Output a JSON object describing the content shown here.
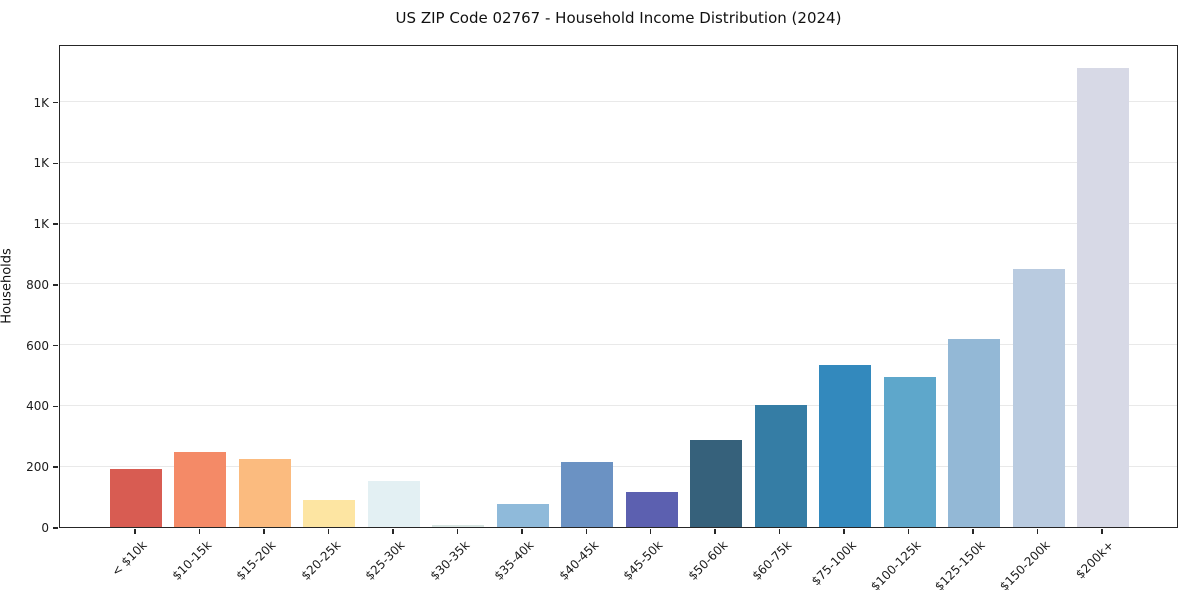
{
  "chart_data": {
    "type": "bar",
    "title": "US ZIP Code 02767 - Household Income Distribution (2024)",
    "xlabel": "",
    "ylabel": "Households",
    "categories": [
      "< $10k",
      "$10-15k",
      "$15-20k",
      "$20-25k",
      "$25-30k",
      "$30-35k",
      "$35-40k",
      "$40-45k",
      "$45-50k",
      "$50-60k",
      "$60-75k",
      "$75-100k",
      "$100-125k",
      "$125-150k",
      "$150-200k",
      "$200k+"
    ],
    "values": [
      190,
      248,
      225,
      90,
      152,
      5,
      75,
      215,
      115,
      285,
      403,
      532,
      493,
      620,
      848,
      1510
    ],
    "bar_colors": [
      "#d85c52",
      "#f48a67",
      "#fbbb7f",
      "#fde5a2",
      "#e3f0f3",
      "#d8e5e2",
      "#8fbada",
      "#6b92c3",
      "#5c60b0",
      "#36617b",
      "#357da5",
      "#3389bd",
      "#5ea7cb",
      "#93b8d6",
      "#b9cbe0",
      "#d7d9e6"
    ],
    "ylim": [
      0,
      1590
    ],
    "yticks": [
      {
        "value": 0,
        "label": "0"
      },
      {
        "value": 200,
        "label": "200"
      },
      {
        "value": 400,
        "label": "400"
      },
      {
        "value": 600,
        "label": "600"
      },
      {
        "value": 800,
        "label": "800"
      },
      {
        "value": 1000,
        "label": "1K"
      },
      {
        "value": 1200,
        "label": "1K"
      },
      {
        "value": 1400,
        "label": "1K"
      }
    ],
    "grid": "horizontal",
    "gridline_color": "#e9e9e9",
    "axis_color": "#262626",
    "background": "#ffffff",
    "legend": "none"
  }
}
